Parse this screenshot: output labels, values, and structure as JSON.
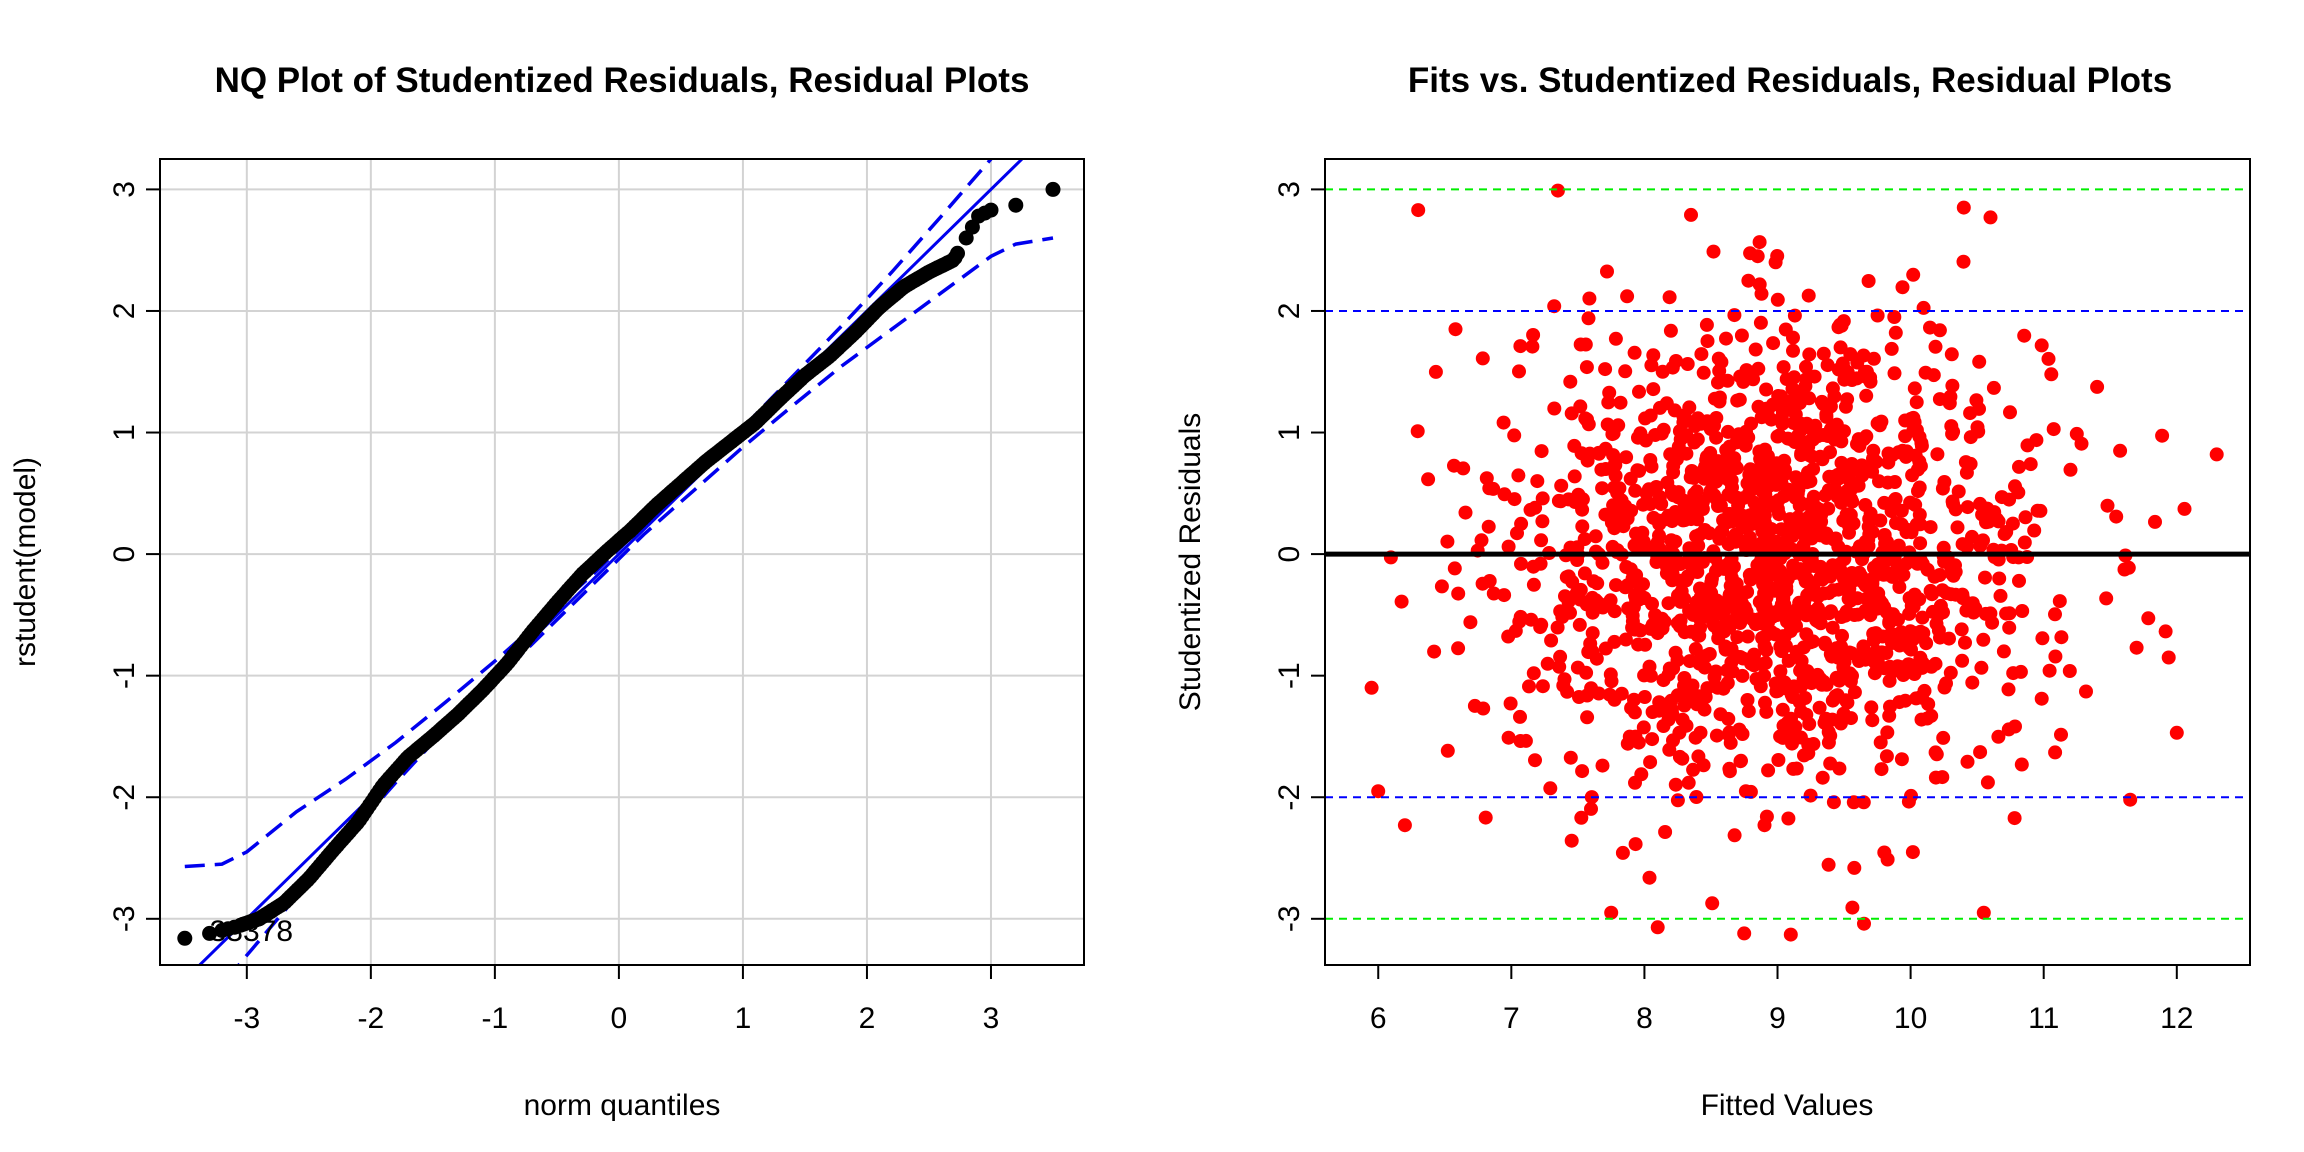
{
  "chart_data": [
    {
      "type": "scatter",
      "title": "NQ Plot of Studentized Residuals, Residual Plots",
      "xlabel": "norm quantiles",
      "ylabel": "rstudent(model)",
      "xlim": [
        -3.7,
        3.75
      ],
      "ylim": [
        -3.38,
        3.25
      ],
      "xticks": [
        -3,
        -2,
        -1,
        0,
        1,
        2,
        3
      ],
      "yticks": [
        -3,
        -2,
        -1,
        0,
        1,
        2,
        3
      ],
      "grid": true,
      "point_color": "#000000",
      "line_color": "#0000ee",
      "grid_color": "#d3d3d3",
      "reference_line": {
        "intercept": 0.0,
        "slope": 1.0
      },
      "confidence_envelope": {
        "x": [
          -3.5,
          -3.2,
          -3.0,
          -2.6,
          -2.2,
          -1.8,
          -1.4,
          -1.0,
          -0.6,
          -0.2,
          0.2,
          0.6,
          1.0,
          1.4,
          1.8,
          2.2,
          2.6,
          3.0,
          3.2,
          3.5
        ],
        "upper": [
          -2.57,
          -2.55,
          -2.45,
          -2.12,
          -1.85,
          -1.55,
          -1.22,
          -0.88,
          -0.52,
          -0.16,
          0.24,
          0.64,
          1.04,
          1.46,
          1.88,
          2.32,
          2.78,
          3.25,
          3.45,
          3.8
        ],
        "lower": [
          -3.85,
          -3.55,
          -3.3,
          -2.82,
          -2.34,
          -1.88,
          -1.44,
          -1.04,
          -0.64,
          -0.24,
          0.16,
          0.52,
          0.88,
          1.22,
          1.55,
          1.85,
          2.15,
          2.45,
          2.55,
          2.6
        ]
      },
      "sample_curve": {
        "x": [
          -3.5,
          -3.3,
          -3.1,
          -2.9,
          -2.7,
          -2.5,
          -2.3,
          -2.1,
          -1.9,
          -1.7,
          -1.5,
          -1.3,
          -1.1,
          -0.9,
          -0.7,
          -0.5,
          -0.3,
          -0.1,
          0.1,
          0.3,
          0.5,
          0.7,
          0.9,
          1.1,
          1.3,
          1.5,
          1.7,
          1.9,
          2.1,
          2.3,
          2.5,
          2.7,
          2.8,
          2.9,
          3.0,
          3.2,
          3.5
        ],
        "y": [
          -3.16,
          -3.12,
          -3.07,
          -3.0,
          -2.87,
          -2.67,
          -2.43,
          -2.2,
          -1.9,
          -1.67,
          -1.5,
          -1.32,
          -1.12,
          -0.9,
          -0.64,
          -0.4,
          -0.17,
          0.02,
          0.2,
          0.4,
          0.58,
          0.76,
          0.92,
          1.08,
          1.28,
          1.47,
          1.63,
          1.82,
          2.03,
          2.2,
          2.32,
          2.42,
          2.6,
          2.78,
          2.83,
          2.87,
          3.0
        ]
      },
      "annotation": {
        "text": "33378",
        "x": -3.3,
        "y": -3.1
      }
    },
    {
      "type": "scatter",
      "title": "Fits vs. Studentized Residuals, Residual Plots",
      "xlabel": "Fitted Values",
      "ylabel": "Studentized Residuals",
      "xlim": [
        5.6,
        12.55
      ],
      "ylim": [
        -3.38,
        3.25
      ],
      "xticks": [
        6,
        7,
        8,
        9,
        10,
        11,
        12
      ],
      "yticks": [
        -3,
        -2,
        -1,
        0,
        1,
        2,
        3
      ],
      "point_color": "#ff0000",
      "center_mean": 9.0,
      "n_points": 1600,
      "seed": 20240611,
      "hlines": [
        {
          "y": 0,
          "color": "#000000",
          "style": "solid"
        },
        {
          "y": 2,
          "color": "#0000ff",
          "style": "dashed"
        },
        {
          "y": -2,
          "color": "#0000ff",
          "style": "dashed"
        },
        {
          "y": 3,
          "color": "#00ee00",
          "style": "dashed"
        },
        {
          "y": -3,
          "color": "#00ee00",
          "style": "dashed"
        }
      ],
      "outliers": [
        {
          "x": 7.35,
          "y": 2.99
        },
        {
          "x": 6.3,
          "y": 2.83
        },
        {
          "x": 8.35,
          "y": 2.79
        },
        {
          "x": 10.4,
          "y": 2.85
        },
        {
          "x": 10.6,
          "y": 2.77
        },
        {
          "x": 12.3,
          "y": 0.82
        },
        {
          "x": 12.0,
          "y": -1.47
        },
        {
          "x": 8.75,
          "y": -3.12
        },
        {
          "x": 9.1,
          "y": -3.13
        },
        {
          "x": 8.1,
          "y": -3.07
        },
        {
          "x": 9.65,
          "y": -3.04
        },
        {
          "x": 7.75,
          "y": -2.95
        },
        {
          "x": 10.55,
          "y": -2.95
        },
        {
          "x": 6.0,
          "y": -1.95
        },
        {
          "x": 6.2,
          "y": -2.23
        },
        {
          "x": 11.65,
          "y": -2.02
        },
        {
          "x": 5.95,
          "y": -1.1
        }
      ]
    }
  ]
}
